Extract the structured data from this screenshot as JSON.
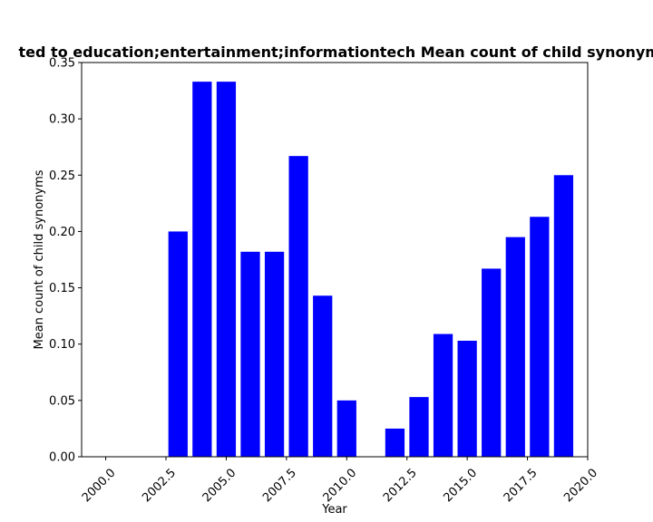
{
  "chart_data": {
    "type": "bar",
    "title": "ted to education;entertainment;informationtech Mean count of child synonyms",
    "xlabel": "Year",
    "ylabel": "Mean count of child synonyms",
    "xlim": [
      1999.0,
      2020.0
    ],
    "ylim": [
      0.0,
      0.35
    ],
    "bar_color": "#0000ff",
    "bar_width": 0.8,
    "x": [
      2003,
      2004,
      2005,
      2006,
      2007,
      2008,
      2009,
      2010,
      2012,
      2013,
      2014,
      2015,
      2016,
      2017,
      2018,
      2019
    ],
    "values": [
      0.2,
      0.333,
      0.333,
      0.182,
      0.182,
      0.267,
      0.143,
      0.05,
      0.025,
      0.053,
      0.109,
      0.103,
      0.167,
      0.195,
      0.213,
      0.25
    ],
    "x_ticks": [
      2000.0,
      2002.5,
      2005.0,
      2007.5,
      2010.0,
      2012.5,
      2015.0,
      2017.5,
      2020.0
    ],
    "x_tick_labels": [
      "2000.0",
      "2002.5",
      "2005.0",
      "2007.5",
      "2010.0",
      "2012.5",
      "2015.0",
      "2017.5",
      "2020.0"
    ],
    "y_ticks": [
      0.0,
      0.05,
      0.1,
      0.15,
      0.2,
      0.25,
      0.3,
      0.35
    ],
    "y_tick_labels": [
      "0.00",
      "0.05",
      "0.10",
      "0.15",
      "0.20",
      "0.25",
      "0.30",
      "0.35"
    ],
    "grid": false,
    "legend": "none"
  }
}
